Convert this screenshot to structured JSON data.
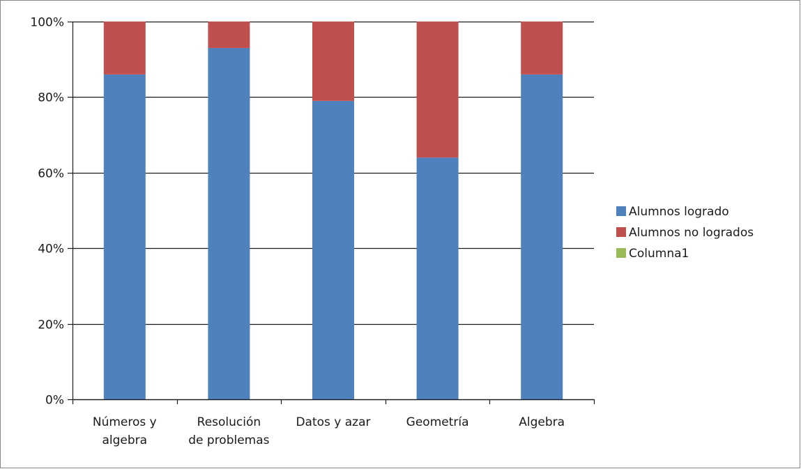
{
  "chart_data": {
    "type": "bar",
    "stacked": true,
    "normalized_percent": true,
    "categories": [
      [
        "Números y",
        "algebra"
      ],
      [
        "Resolución",
        "de problemas"
      ],
      [
        "Datos y azar"
      ],
      [
        "Geometría"
      ],
      [
        "Algebra"
      ]
    ],
    "series": [
      {
        "name": "Alumnos logrado",
        "color": "#4f81bd",
        "values": [
          86,
          93,
          79,
          64,
          86
        ]
      },
      {
        "name": "Alumnos no logrados",
        "color": "#c0504d",
        "values": [
          14,
          7,
          21,
          36,
          14
        ]
      },
      {
        "name": "Columna1",
        "color": "#9bbb59",
        "values": [
          0,
          0,
          0,
          0,
          0
        ]
      }
    ],
    "ylim": [
      0,
      100
    ],
    "yticks": [
      0,
      20,
      40,
      60,
      80,
      100
    ],
    "ytick_labels": [
      "0%",
      "20%",
      "40%",
      "60%",
      "80%",
      "100%"
    ],
    "grid": true,
    "legend_position": "right",
    "title": "",
    "xlabel": "",
    "ylabel": ""
  }
}
